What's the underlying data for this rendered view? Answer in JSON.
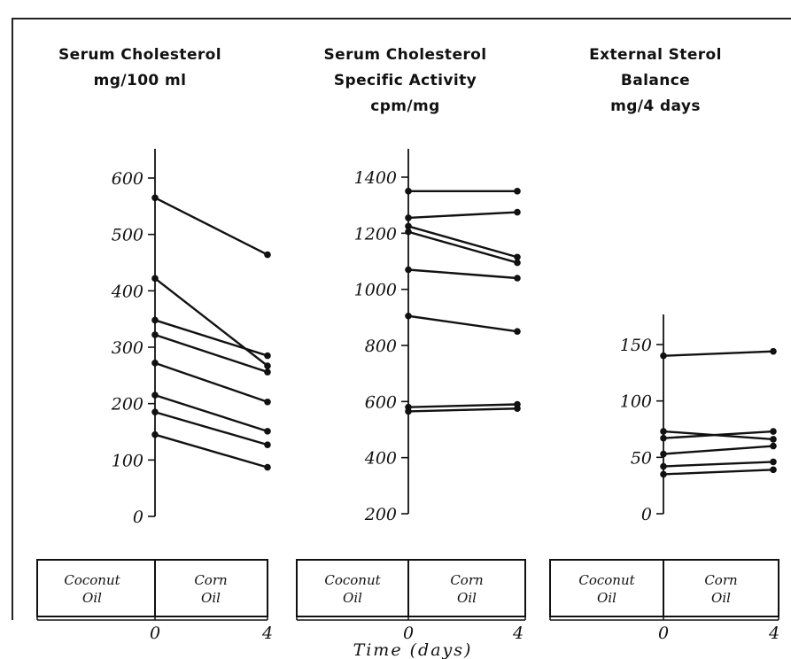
{
  "panels": [
    {
      "title_lines": [
        "Serum Cholesterol",
        "mg/100 ml"
      ],
      "box_left": [
        "Coconut",
        "Oil"
      ],
      "box_right": [
        "Corn",
        "Oil"
      ],
      "x_ticks": [
        "0",
        "4"
      ]
    },
    {
      "title_lines": [
        "Serum Cholesterol",
        "Specific Activity",
        "cpm/mg"
      ],
      "box_left": [
        "Coconut",
        "Oil"
      ],
      "box_right": [
        "Corn",
        "Oil"
      ],
      "x_ticks": [
        "0",
        "4"
      ]
    },
    {
      "title_lines": [
        "External Sterol",
        "Balance",
        "mg/4 days"
      ],
      "box_left": [
        "Coconut",
        "Oil"
      ],
      "box_right": [
        "Corn",
        "Oil"
      ],
      "x_ticks": [
        "0",
        "4"
      ]
    }
  ],
  "xaxis_title": "Time (days)",
  "chart_data": [
    {
      "type": "line",
      "title": "Serum Cholesterol mg/100 ml",
      "x": [
        0,
        4
      ],
      "ylim": [
        0,
        600
      ],
      "yticks": [
        0,
        100,
        200,
        300,
        400,
        500,
        600
      ],
      "series": [
        {
          "values": [
            565,
            464
          ]
        },
        {
          "values": [
            422,
            267
          ]
        },
        {
          "values": [
            348,
            285
          ]
        },
        {
          "values": [
            322,
            256
          ]
        },
        {
          "values": [
            272,
            203
          ]
        },
        {
          "values": [
            215,
            151
          ]
        },
        {
          "values": [
            185,
            127
          ]
        },
        {
          "values": [
            145,
            87
          ]
        }
      ]
    },
    {
      "type": "line",
      "title": "Serum Cholesterol Specific Activity cpm/mg",
      "x": [
        0,
        4
      ],
      "ylim": [
        200,
        1400
      ],
      "yticks": [
        200,
        400,
        600,
        800,
        1000,
        1200,
        1400
      ],
      "series": [
        {
          "values": [
            1350,
            1350
          ]
        },
        {
          "values": [
            1255,
            1275
          ]
        },
        {
          "values": [
            1225,
            1115
          ]
        },
        {
          "values": [
            1205,
            1095
          ]
        },
        {
          "values": [
            1070,
            1040
          ]
        },
        {
          "values": [
            905,
            850
          ]
        },
        {
          "values": [
            580,
            590
          ]
        },
        {
          "values": [
            565,
            575
          ]
        }
      ]
    },
    {
      "type": "line",
      "title": "External Sterol Balance mg/4 days",
      "x": [
        0,
        4
      ],
      "ylim": [
        0,
        150
      ],
      "yticks": [
        0,
        50,
        100,
        150
      ],
      "series": [
        {
          "values": [
            140,
            144
          ]
        },
        {
          "values": [
            73,
            66
          ]
        },
        {
          "values": [
            67,
            73
          ]
        },
        {
          "values": [
            53,
            60
          ]
        },
        {
          "values": [
            42,
            46
          ]
        },
        {
          "values": [
            35,
            39
          ]
        }
      ]
    }
  ]
}
